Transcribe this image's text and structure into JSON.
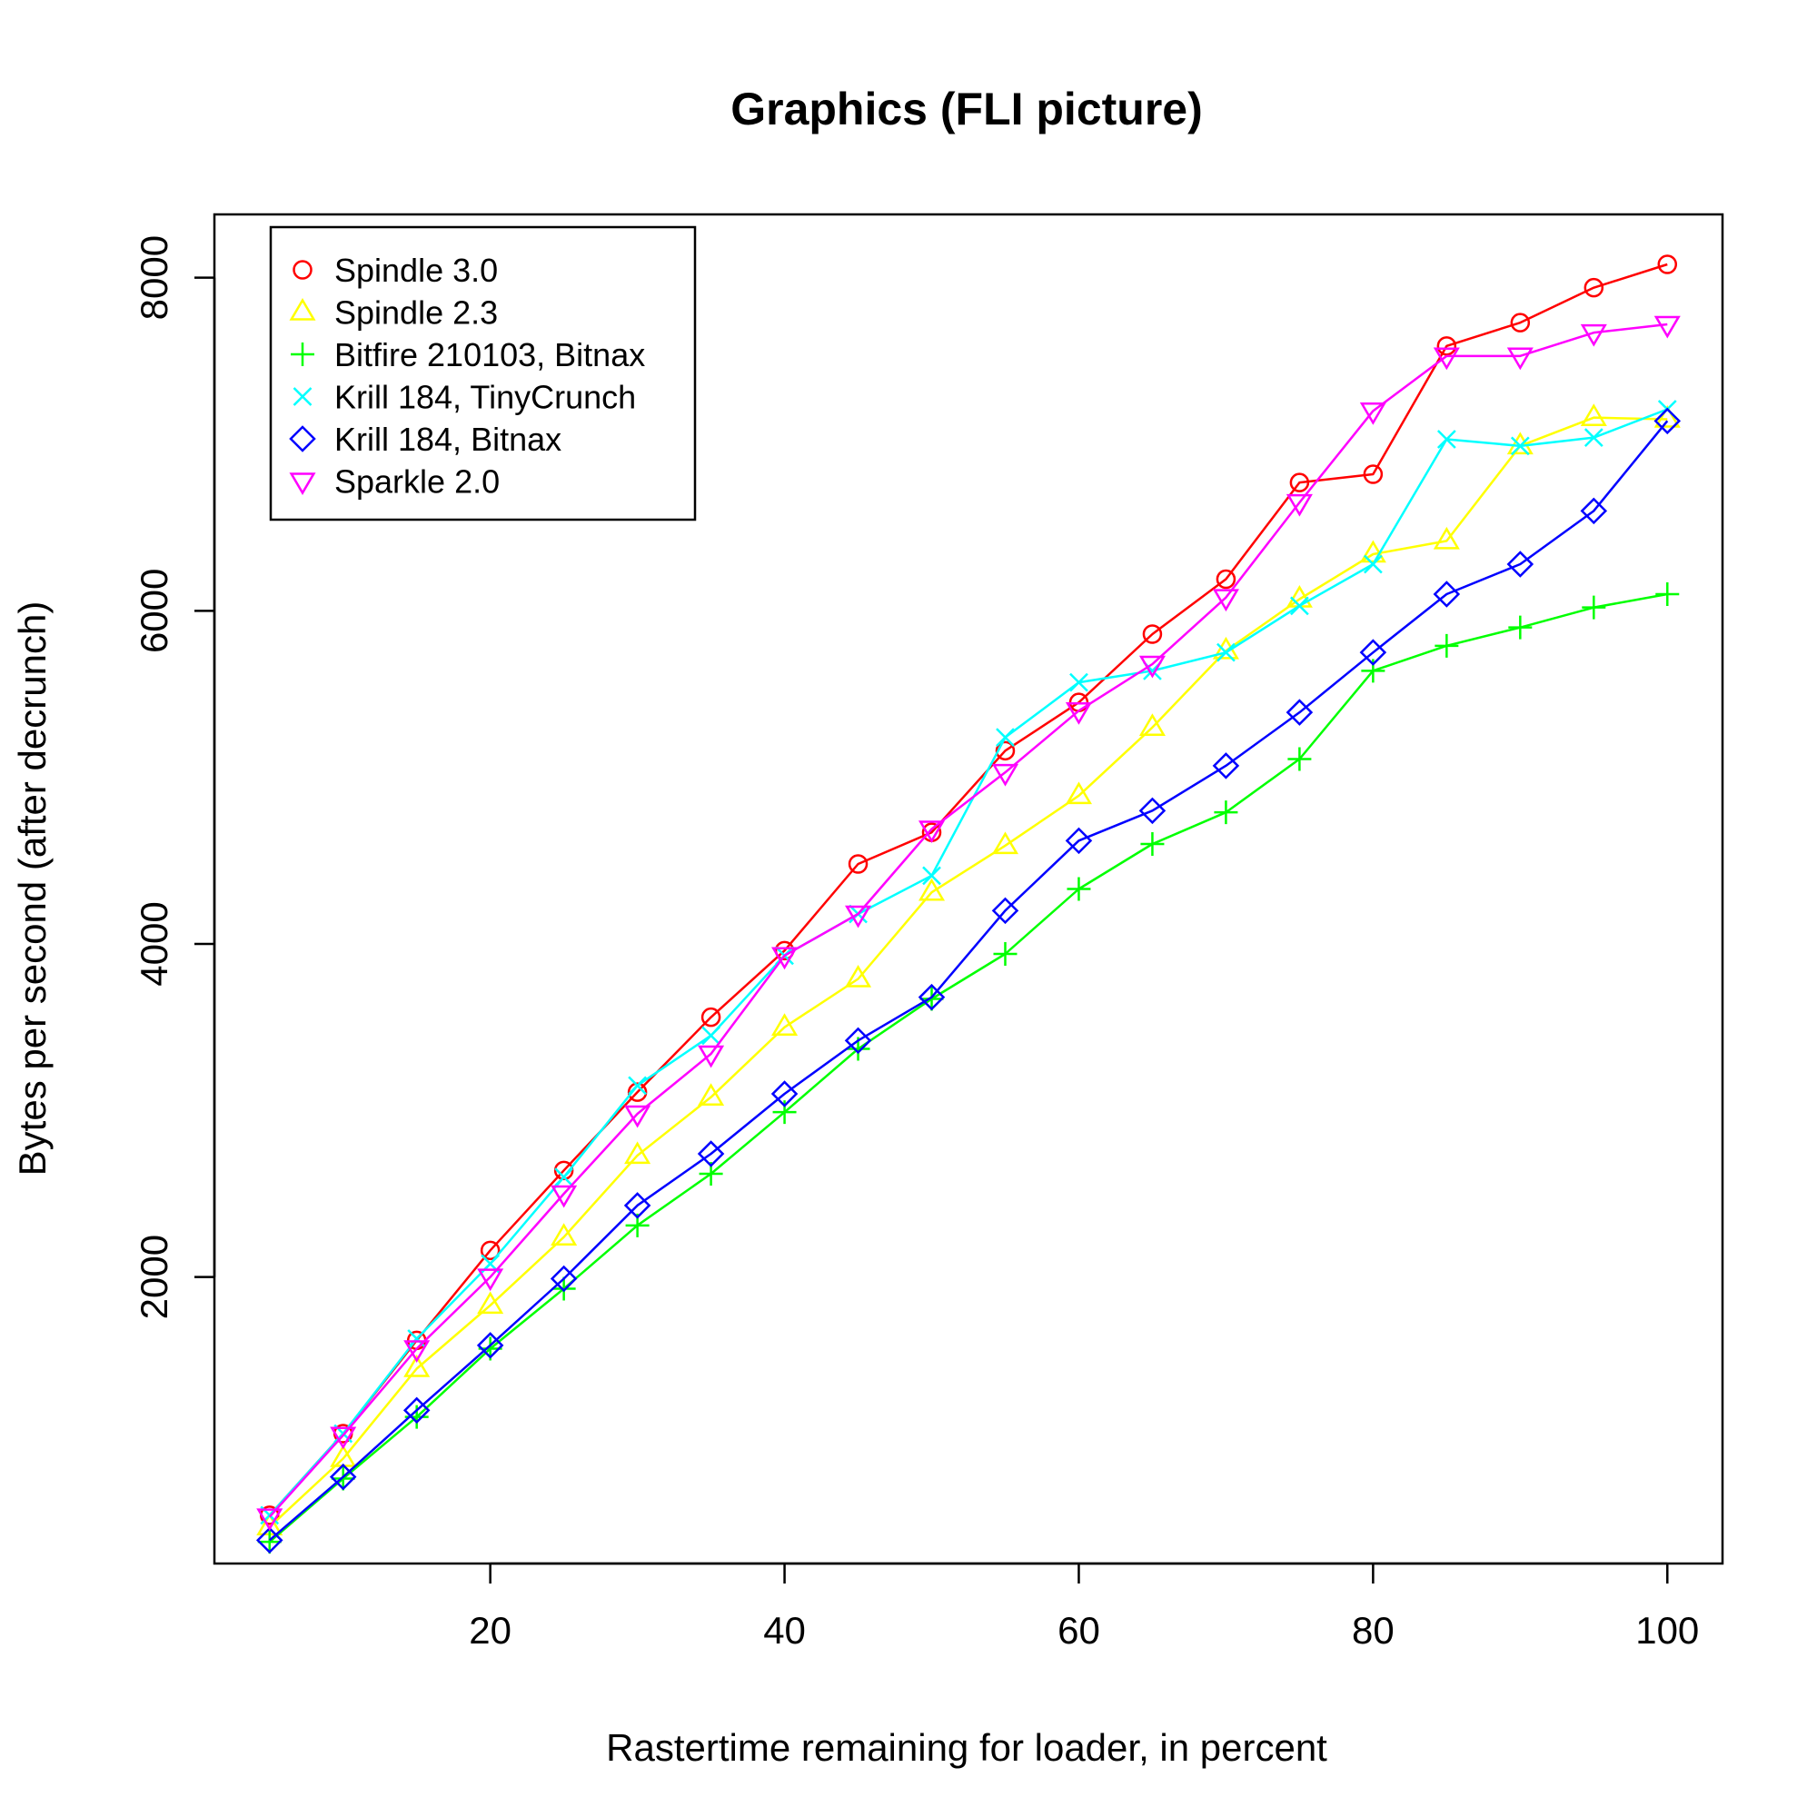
{
  "chart_data": {
    "type": "line",
    "title": "Graphics (FLI picture)",
    "xlabel": "Rastertime remaining for loader, in percent",
    "ylabel": "Bytes per second (after decrunch)",
    "xlim": [
      1.25,
      103.75
    ],
    "ylim": [
      280,
      8380
    ],
    "xticks": [
      20,
      40,
      60,
      80,
      100
    ],
    "yticks": [
      2000,
      4000,
      6000,
      8000
    ],
    "legend_position": "top-left",
    "x": [
      5,
      10,
      15,
      20,
      25,
      30,
      35,
      40,
      45,
      50,
      55,
      60,
      65,
      70,
      75,
      80,
      85,
      90,
      95,
      100
    ],
    "series": [
      {
        "name": "Spindle 3.0",
        "color": "#ff0000",
        "marker": "circle",
        "values": [
          570,
          1060,
          1620,
          2160,
          2640,
          3110,
          3560,
          3960,
          4480,
          4670,
          5160,
          5450,
          5860,
          6190,
          6770,
          6820,
          7590,
          7730,
          7940,
          8080
        ]
      },
      {
        "name": "Spindle 2.3",
        "color": "#ffff00",
        "marker": "triangle-up",
        "values": [
          500,
          910,
          1450,
          1830,
          2240,
          2730,
          3080,
          3500,
          3790,
          4310,
          4590,
          4890,
          5300,
          5760,
          6070,
          6340,
          6420,
          6990,
          7160,
          7150
        ]
      },
      {
        "name": "Bitfire 210103, Bitnax",
        "color": "#00ff00",
        "marker": "plus",
        "values": [
          410,
          790,
          1160,
          1570,
          1930,
          2310,
          2620,
          2990,
          3370,
          3670,
          3940,
          4330,
          4600,
          4790,
          5110,
          5640,
          5790,
          5900,
          6020,
          6100
        ]
      },
      {
        "name": "Krill 184, TinyCrunch",
        "color": "#00ffff",
        "marker": "cross",
        "values": [
          570,
          1060,
          1630,
          2080,
          2600,
          3150,
          3450,
          3930,
          4180,
          4410,
          5240,
          5570,
          5640,
          5750,
          6030,
          6280,
          7030,
          6990,
          7040,
          7210
        ]
      },
      {
        "name": "Krill 184, Bitnax",
        "color": "#0000ff",
        "marker": "diamond",
        "values": [
          420,
          800,
          1200,
          1590,
          1990,
          2430,
          2740,
          3100,
          3420,
          3680,
          4200,
          4620,
          4800,
          5070,
          5390,
          5750,
          6100,
          6280,
          6600,
          7140
        ]
      },
      {
        "name": "Sparkle 2.0",
        "color": "#ff00ff",
        "marker": "triangle-down",
        "values": [
          560,
          1050,
          1570,
          2000,
          2500,
          2980,
          3340,
          3930,
          4180,
          4690,
          5030,
          5400,
          5680,
          6080,
          6650,
          7200,
          7530,
          7530,
          7670,
          7720
        ]
      }
    ]
  }
}
